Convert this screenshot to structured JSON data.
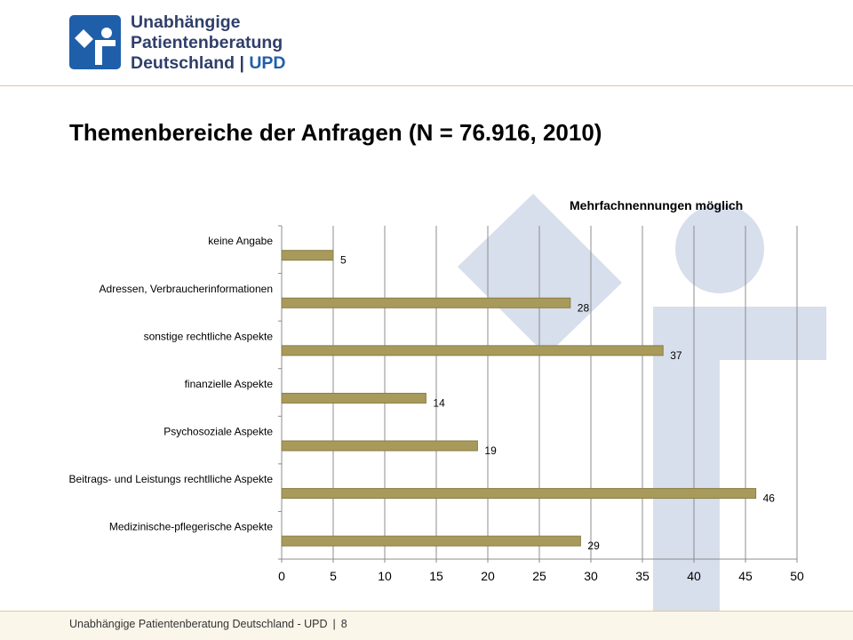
{
  "brand": {
    "line1": "Unabhängige",
    "line2": "Patientenberatung",
    "line3_main": "Deutschland",
    "line3_sep": "|",
    "line3_accent": "UPD",
    "logo_icon": "person-signpost-icon",
    "color_primary": "#1f5faa",
    "color_text": "#2f3f6a"
  },
  "slide": {
    "title": "Themenbereiche der Anfragen (N = 76.916, 2010)",
    "note": "Mehrfachnennungen möglich"
  },
  "footer": {
    "org": "Unabhängige Patientenberatung Deutschland - UPD",
    "sep": "|",
    "page": "8"
  },
  "colors": {
    "bar": "#a89a5a",
    "bar_edge": "#8a7d45",
    "watermark": "#d7deec",
    "rule": "#e3c98a"
  },
  "chart_data": {
    "type": "bar",
    "orientation": "horizontal",
    "categories": [
      "keine Angabe",
      "Adressen, Verbraucherinformationen",
      "sonstige rechtliche Aspekte",
      "finanzielle Aspekte",
      "Psychosoziale Aspekte",
      "Beitrags- und Leistungs rechtlliche Aspekte",
      "Medizinische-pflegerische Aspekte"
    ],
    "values": [
      5,
      28,
      37,
      14,
      19,
      46,
      29
    ],
    "value_labels": [
      "5",
      "28",
      "37",
      "14",
      "19",
      "46",
      "29"
    ],
    "xlim": [
      0,
      50
    ],
    "xticks": [
      0,
      5,
      10,
      15,
      20,
      25,
      30,
      35,
      40,
      45,
      50
    ],
    "xtick_labels": [
      "0",
      "5",
      "10",
      "15",
      "20",
      "25",
      "30",
      "35",
      "40",
      "45",
      "50"
    ],
    "grid": true,
    "legend": "none"
  }
}
